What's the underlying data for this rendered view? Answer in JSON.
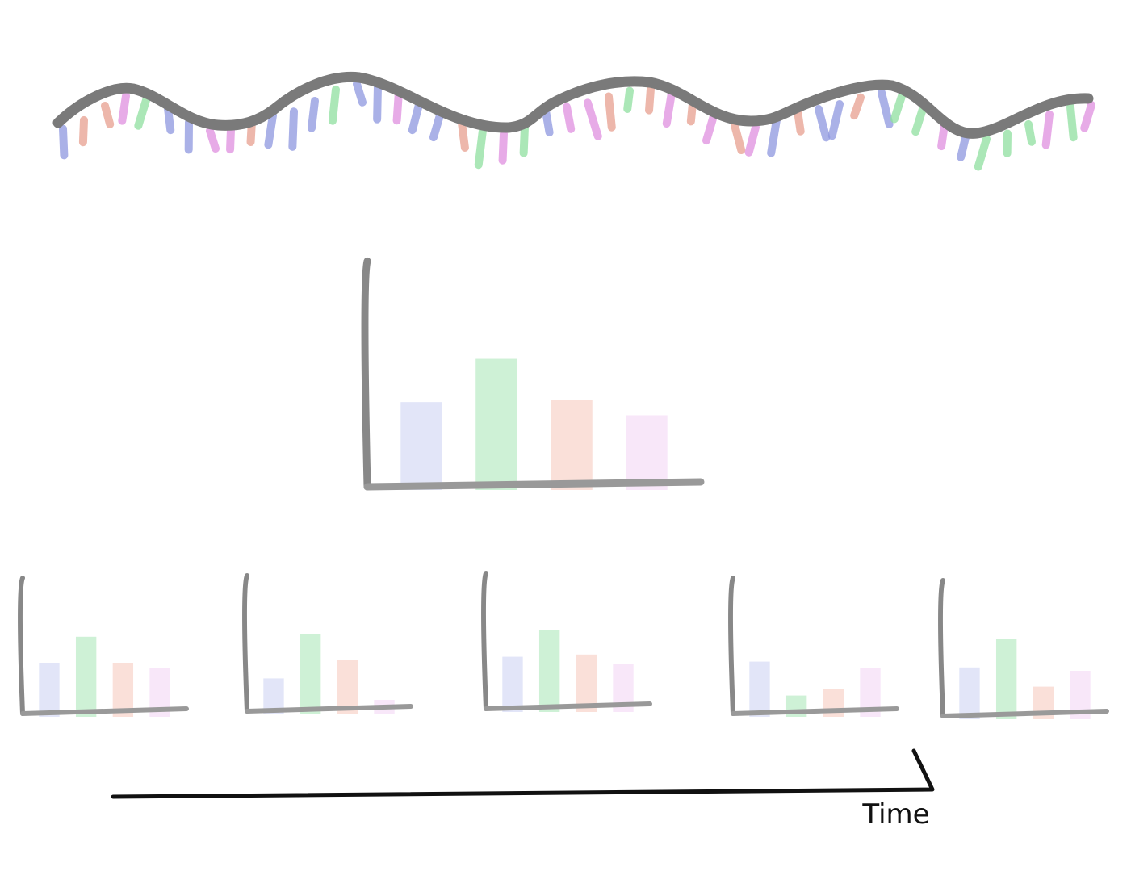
{
  "labels": {
    "time": "Time"
  }
}
